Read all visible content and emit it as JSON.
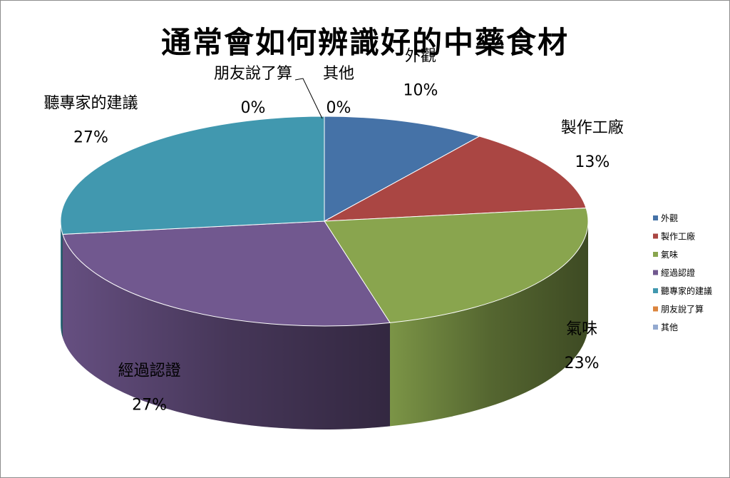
{
  "chart_data": {
    "type": "pie",
    "title": "通常會如何辨識好的中藥食材",
    "three_d": true,
    "legend_position": "right",
    "categories": [
      "外觀",
      "製作工廠",
      "氣味",
      "經過認證",
      "聽專家的建議",
      "朋友說了算",
      "其他"
    ],
    "values": [
      10,
      13,
      23,
      27,
      27,
      0,
      0
    ],
    "value_labels": [
      "10%",
      "13%",
      "23%",
      "27%",
      "27%",
      "0%",
      "0%"
    ],
    "colors": [
      "#4572A7",
      "#AA4643",
      "#89A54E",
      "#71588F",
      "#4198AF",
      "#DB843D",
      "#93A9CF"
    ]
  }
}
